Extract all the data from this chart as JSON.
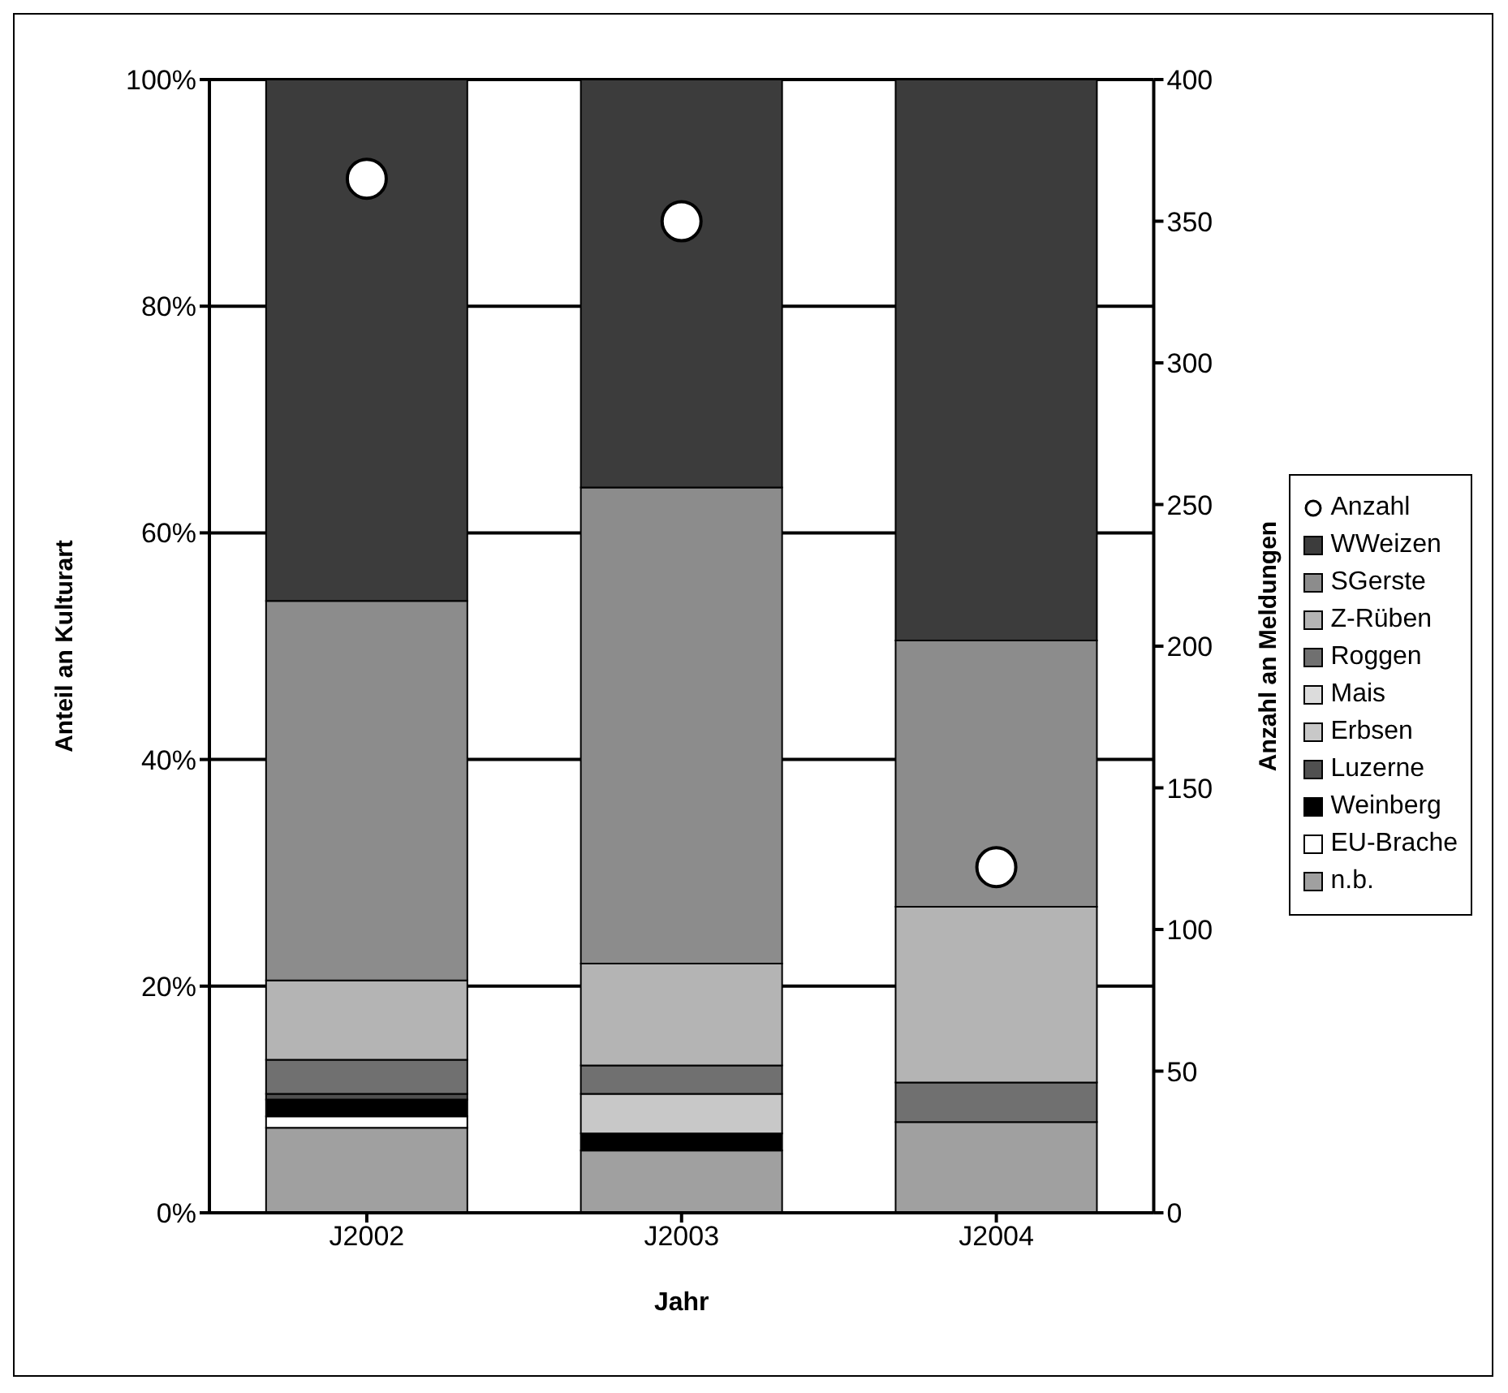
{
  "chart_data": {
    "type": "bar",
    "stacked": true,
    "xlabel": "Jahr",
    "ylabel": "Anteil an Kulturart",
    "y2label": "Anzahl an Meldungen",
    "categories": [
      "J2002",
      "J2003",
      "J2004"
    ],
    "series": [
      {
        "name": "n.b.",
        "color": "#a0a0a0",
        "values": [
          7.5,
          5.5,
          8
        ]
      },
      {
        "name": "EU-Brache",
        "color": "#ffffff",
        "values": [
          1,
          0,
          0
        ]
      },
      {
        "name": "Weinberg",
        "color": "#000000",
        "values": [
          1.5,
          1.5,
          0
        ]
      },
      {
        "name": "Luzerne",
        "color": "#505050",
        "values": [
          0.5,
          0,
          0
        ]
      },
      {
        "name": "Erbsen",
        "color": "#c8c8c8",
        "values": [
          0,
          3.5,
          0
        ]
      },
      {
        "name": "Mais",
        "color": "#dcdcdc",
        "values": [
          0,
          0,
          0
        ]
      },
      {
        "name": "Roggen",
        "color": "#707070",
        "values": [
          3,
          2.5,
          3.5
        ]
      },
      {
        "name": "Z-Rüben",
        "color": "#b4b4b4",
        "values": [
          7,
          9,
          15.5
        ]
      },
      {
        "name": "SGerste",
        "color": "#8c8c8c",
        "values": [
          33.5,
          42,
          23.5
        ]
      },
      {
        "name": "WWeizen",
        "color": "#3c3c3c",
        "values": [
          46,
          36,
          49.5
        ]
      },
      {
        "name": "Anzahl",
        "type": "scatter",
        "axis": "y2",
        "color": "#ffffff",
        "marker": "circle",
        "values": [
          365,
          350,
          122
        ]
      }
    ],
    "ylim": [
      0,
      100
    ],
    "yticks": [
      {
        "value": 0,
        "label": "0%"
      },
      {
        "value": 20,
        "label": "20%"
      },
      {
        "value": 40,
        "label": "40%"
      },
      {
        "value": 60,
        "label": "60%"
      },
      {
        "value": 80,
        "label": "80%"
      },
      {
        "value": 100,
        "label": "100%"
      }
    ],
    "y2lim": [
      0,
      400
    ],
    "y2ticks": [
      0,
      50,
      100,
      150,
      200,
      250,
      300,
      350,
      400
    ],
    "grid": "y",
    "legend": "right"
  }
}
